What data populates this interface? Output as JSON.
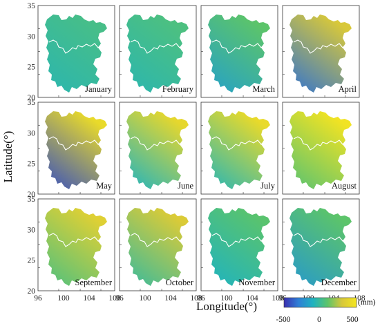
{
  "figure": {
    "xlabel": "Longitude(°)",
    "ylabel": "Latitude(°)",
    "x_ticks": [
      "96",
      "100",
      "104",
      "108"
    ],
    "y_ticks": [
      "20",
      "25",
      "30",
      "35"
    ]
  },
  "colorbar": {
    "unit": "(mm)",
    "ticks": [
      "-500",
      "0",
      "500"
    ],
    "range": [
      -500,
      500
    ],
    "stops": [
      "#3a2fb0",
      "#2f7fd6",
      "#1fb3c0",
      "#5cc46a",
      "#d8c83a",
      "#f4e620"
    ]
  },
  "panels": [
    {
      "month": "January",
      "vmin": -60,
      "vmax": 30
    },
    {
      "month": "February",
      "vmin": -60,
      "vmax": 50
    },
    {
      "month": "March",
      "vmin": -170,
      "vmax": 100
    },
    {
      "month": "April",
      "vmin": -330,
      "vmax": 300
    },
    {
      "month": "May",
      "vmin": -420,
      "vmax": 420
    },
    {
      "month": "June",
      "vmin": -100,
      "vmax": 400
    },
    {
      "month": "July",
      "vmin": -80,
      "vmax": 420
    },
    {
      "month": "August",
      "vmin": 80,
      "vmax": 480
    },
    {
      "month": "September",
      "vmin": 50,
      "vmax": 350
    },
    {
      "month": "October",
      "vmin": -20,
      "vmax": 320
    },
    {
      "month": "November",
      "vmin": -100,
      "vmax": 90
    },
    {
      "month": "December",
      "vmin": -200,
      "vmax": 100
    }
  ]
}
